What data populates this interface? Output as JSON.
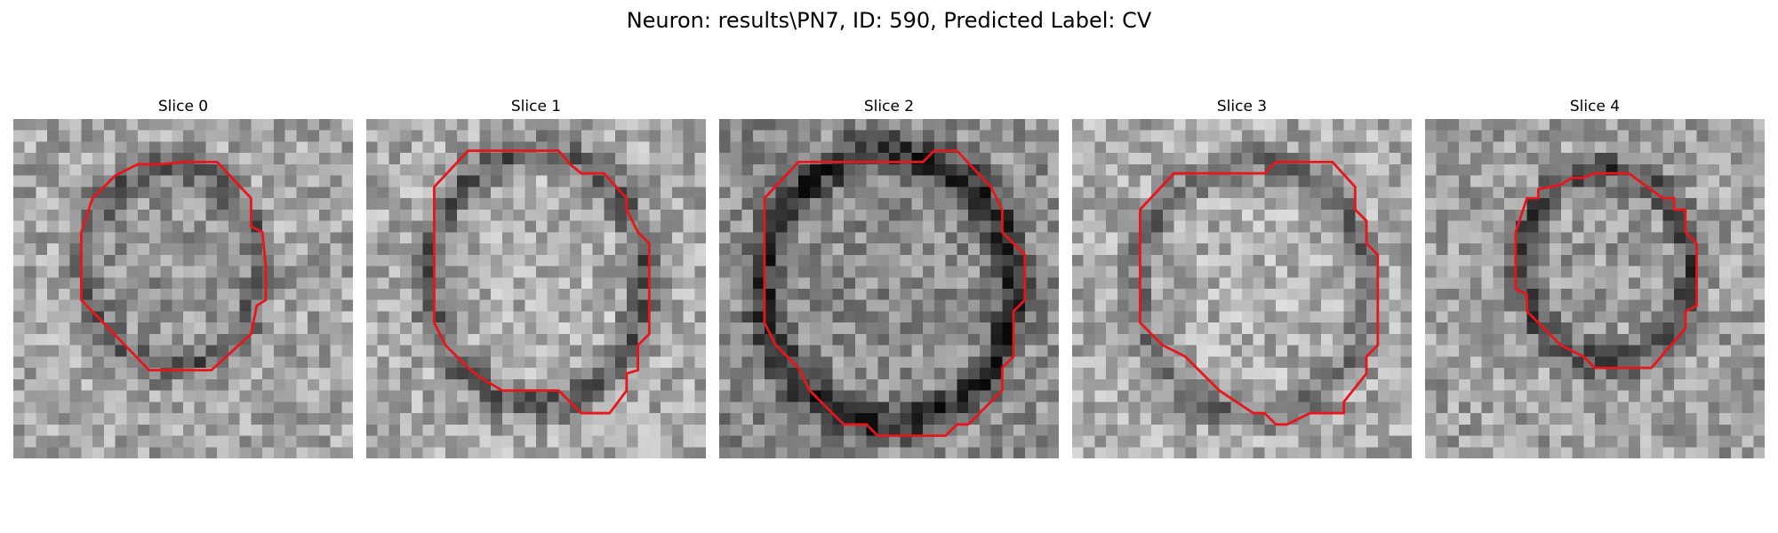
{
  "figure": {
    "title": "Neuron: results\\PN7, ID: 590, Predicted Label: CV"
  },
  "panels": [
    {
      "title": "Slice 0"
    },
    {
      "title": "Slice 1"
    },
    {
      "title": "Slice 2"
    },
    {
      "title": "Slice 3"
    },
    {
      "title": "Slice 4"
    }
  ],
  "colors": {
    "contour": "#e8151b",
    "background": "#ffffff"
  }
}
